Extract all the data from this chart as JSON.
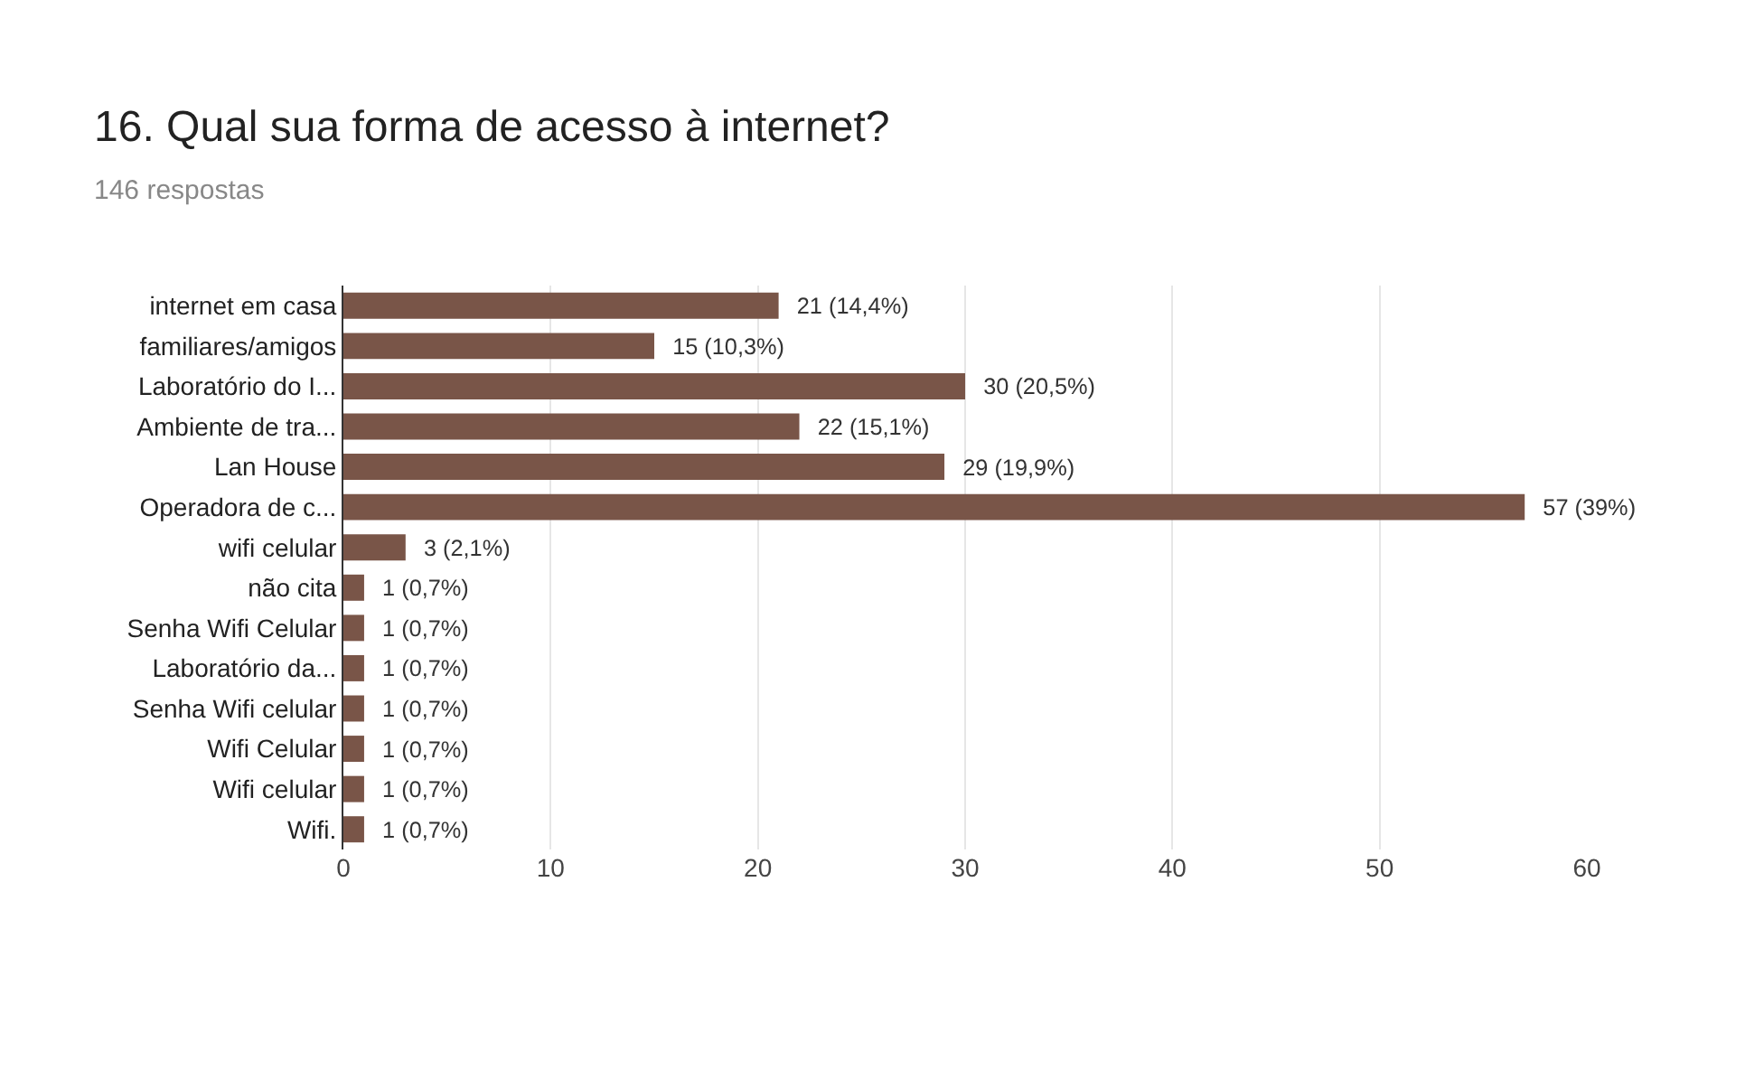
{
  "chart_data": {
    "type": "bar",
    "orientation": "horizontal",
    "title": "16. Qual sua forma de acesso à internet?",
    "subtitle": "146 respostas",
    "categories": [
      "internet em casa",
      "familiares/amigos",
      "Laboratório do I...",
      "Ambiente de tra...",
      "Lan House",
      "Operadora de c...",
      "wifi celular",
      "não cita",
      "Senha Wifi Celular",
      "Laboratório da...",
      "Senha Wifi celular",
      "Wifi Celular",
      "Wifi celular",
      "Wifi."
    ],
    "values": [
      21,
      15,
      30,
      22,
      29,
      57,
      3,
      1,
      1,
      1,
      1,
      1,
      1,
      1
    ],
    "value_labels": [
      "21 (14,4%)",
      "15 (10,3%)",
      "30 (20,5%)",
      "22 (15,1%)",
      "29 (19,9%)",
      "57 (39%)",
      "3 (2,1%)",
      "1 (0,7%)",
      "1 (0,7%)",
      "1 (0,7%)",
      "1 (0,7%)",
      "1 (0,7%)",
      "1 (0,7%)",
      "1 (0,7%)"
    ],
    "color": "#795548",
    "xlim": [
      0,
      60
    ],
    "xticks": [
      0,
      10,
      20,
      30,
      40,
      50,
      60
    ],
    "grid": "x",
    "legend": false
  }
}
